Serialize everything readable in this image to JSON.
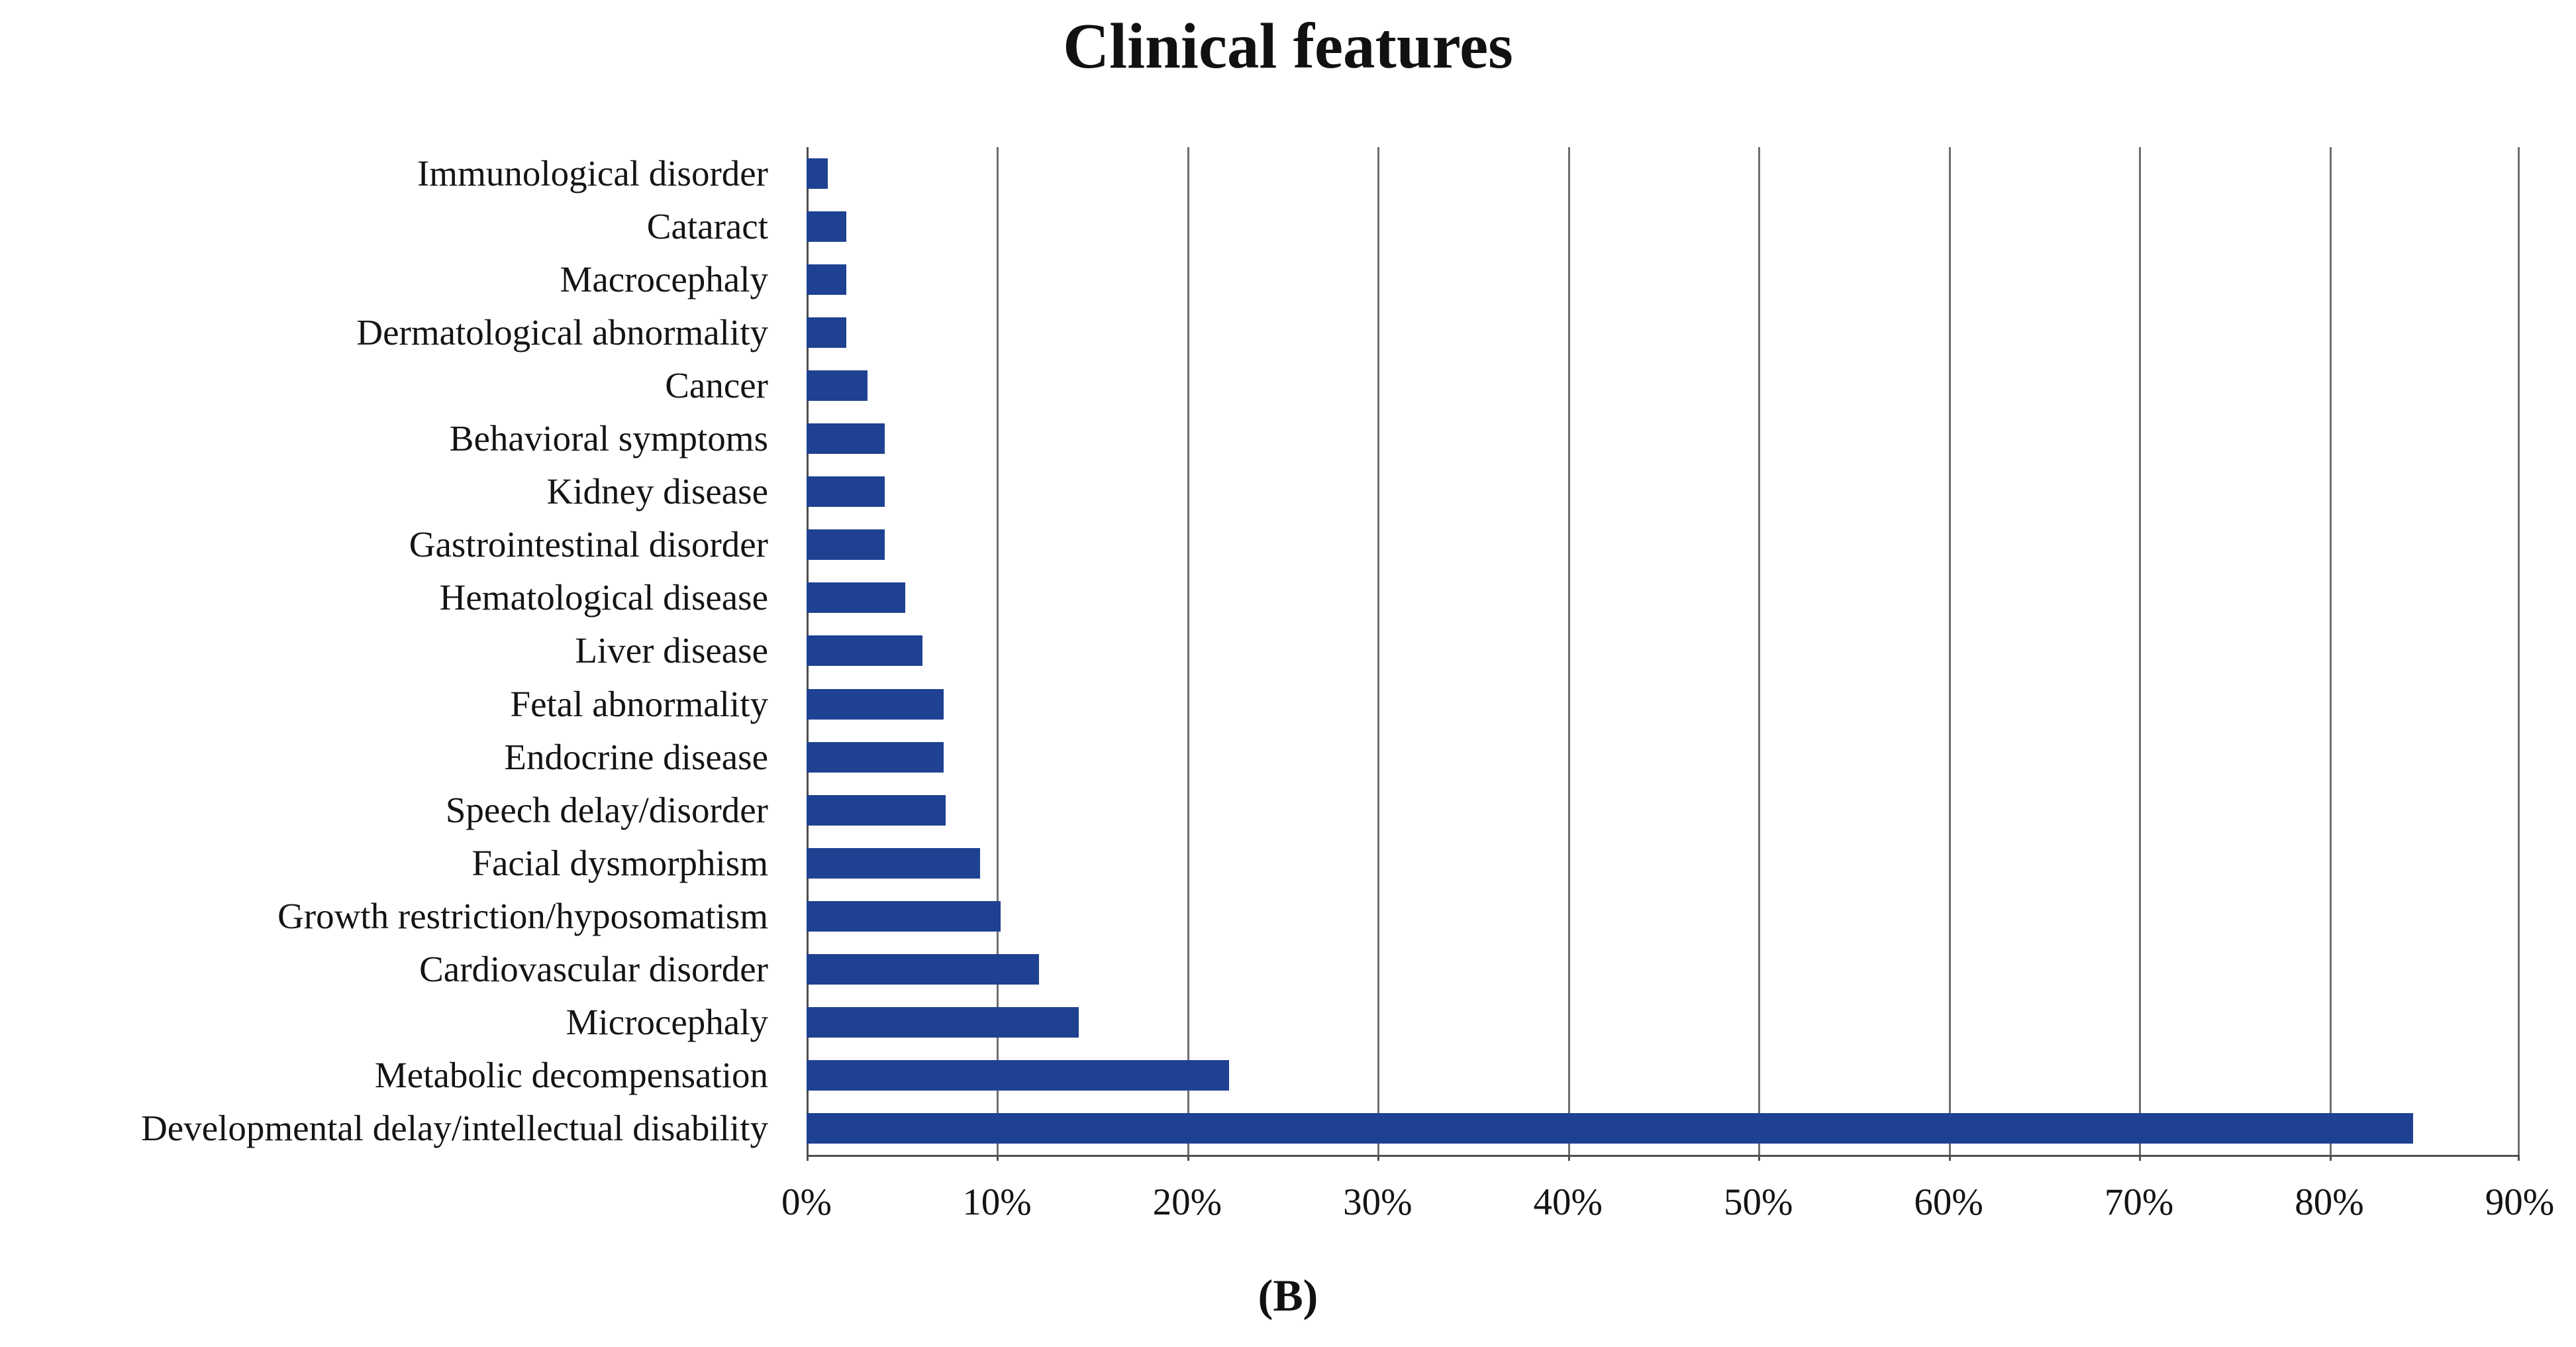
{
  "chart_data": {
    "type": "bar",
    "orientation": "horizontal",
    "title": "Clinical features",
    "panel_label": "(B)",
    "categories": [
      "Immunological disorder",
      "Cataract",
      "Macrocephaly",
      "Dermatological abnormality",
      "Cancer",
      "Behavioral symptoms",
      "Kidney disease",
      "Gastrointestinal disorder",
      "Hematological disease",
      "Liver disease",
      "Fetal abnormality",
      "Endocrine disease",
      "Speech delay/disorder",
      "Facial dysmorphism",
      "Growth restriction/hyposomatism",
      "Cardiovascular disorder",
      "Microcephaly",
      "Metabolic decompensation",
      "Developmental delay/intellectual disability"
    ],
    "values_percent": [
      1.1,
      2.1,
      2.1,
      2.1,
      3.2,
      4.1,
      4.1,
      4.1,
      5.2,
      6.1,
      7.2,
      7.2,
      7.3,
      9.1,
      10.2,
      12.2,
      14.3,
      22.2,
      84.4
    ],
    "x_ticks": [
      "0%",
      "10%",
      "20%",
      "30%",
      "40%",
      "50%",
      "60%",
      "70%",
      "80%",
      "90%"
    ],
    "xlim": [
      0,
      90
    ],
    "grid": true,
    "legend": false,
    "colors": {
      "bar": "#1e4191",
      "gridline": "#6f6f6f",
      "axis": "#4f4f4f",
      "text": "#141414"
    }
  }
}
